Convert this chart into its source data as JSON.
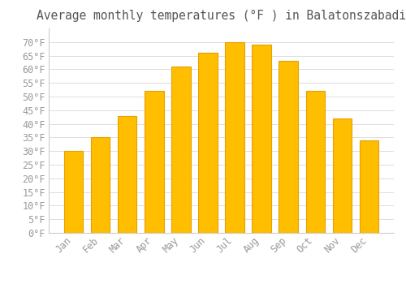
{
  "title": "Average monthly temperatures (°F ) in Balatonszabadi",
  "months": [
    "Jan",
    "Feb",
    "Mar",
    "Apr",
    "May",
    "Jun",
    "Jul",
    "Aug",
    "Sep",
    "Oct",
    "Nov",
    "Dec"
  ],
  "values": [
    30,
    35,
    43,
    52,
    61,
    66,
    70,
    69,
    63,
    52,
    42,
    34
  ],
  "bar_color": "#FFBE00",
  "bar_edge_color": "#E8A000",
  "background_color": "#FFFFFF",
  "grid_color": "#DDDDDD",
  "text_color": "#999999",
  "title_color": "#555555",
  "ylim": [
    0,
    75
  ],
  "yticks": [
    0,
    5,
    10,
    15,
    20,
    25,
    30,
    35,
    40,
    45,
    50,
    55,
    60,
    65,
    70
  ],
  "title_fontsize": 10.5,
  "tick_fontsize": 8.5,
  "bar_width": 0.7
}
